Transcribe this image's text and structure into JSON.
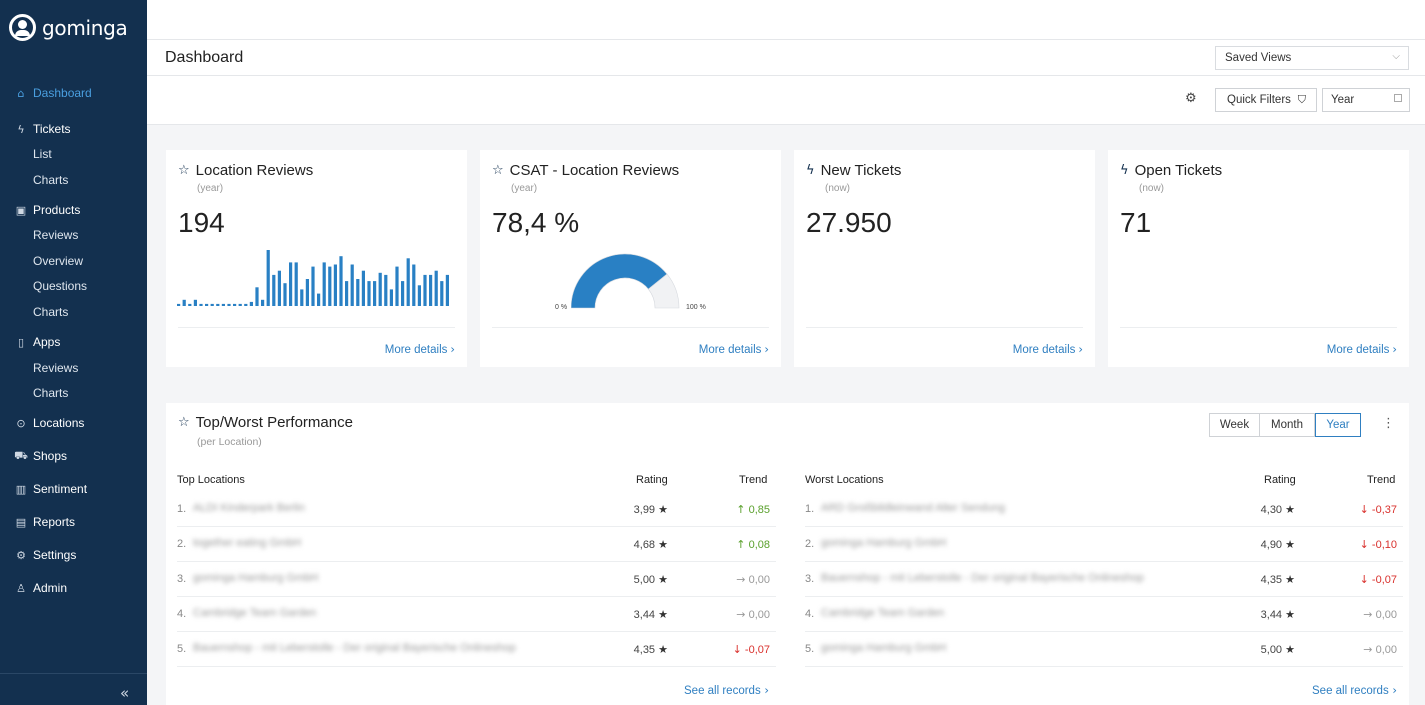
{
  "app": {
    "brand": "gominga"
  },
  "sidebar": {
    "items": [
      {
        "label": "Dashboard",
        "icon": "home-icon",
        "active": true
      },
      {
        "label": "Tickets",
        "icon": "bolt-icon",
        "subitems": [
          "List",
          "Charts"
        ]
      },
      {
        "label": "Products",
        "icon": "box-icon",
        "subitems": [
          "Reviews",
          "Overview",
          "Questions",
          "Charts"
        ]
      },
      {
        "label": "Apps",
        "icon": "phone-icon",
        "subitems": [
          "Reviews",
          "Charts"
        ]
      },
      {
        "label": "Locations",
        "icon": "pin-icon"
      },
      {
        "label": "Shops",
        "icon": "cart-icon"
      },
      {
        "label": "Sentiment",
        "icon": "bar-chart-icon"
      },
      {
        "label": "Reports",
        "icon": "report-icon"
      },
      {
        "label": "Settings",
        "icon": "gear-icon"
      },
      {
        "label": "Admin",
        "icon": "admin-icon"
      }
    ]
  },
  "header": {
    "title": "Dashboard",
    "saved_views": "Saved Views",
    "quick_filters": "Quick Filters",
    "period": "Year"
  },
  "cards": [
    {
      "title": "Location Reviews",
      "sub": "(year)",
      "value": "194",
      "more": "More details"
    },
    {
      "title": "CSAT - Location Reviews",
      "sub": "(year)",
      "value": "78,4 %",
      "more": "More details",
      "gauge": {
        "min_label": "0 %",
        "max_label": "100 %",
        "value_pct": 78.4
      }
    },
    {
      "title": "New Tickets",
      "sub": "(now)",
      "value": "27.950",
      "more": "More details"
    },
    {
      "title": "Open Tickets",
      "sub": "(now)",
      "value": "71",
      "more": "More details"
    }
  ],
  "chart_data": {
    "type": "bar",
    "values": [
      1,
      3,
      1,
      3,
      1,
      1,
      1,
      1,
      1,
      1,
      1,
      1,
      1,
      2,
      9,
      3,
      27,
      15,
      17,
      11,
      21,
      21,
      8,
      13,
      19,
      6,
      21,
      19,
      20,
      24,
      12,
      20,
      13,
      17,
      12,
      12,
      16,
      15,
      8,
      19,
      12,
      23,
      20,
      10,
      15,
      15,
      17,
      12,
      15
    ]
  },
  "performance": {
    "title": "Top/Worst Performance",
    "sub": "(per Location)",
    "periods": [
      "Week",
      "Month",
      "Year"
    ],
    "active_period": "Year",
    "top": {
      "header": "Top Locations",
      "rating_header": "Rating",
      "trend_header": "Trend",
      "rows": [
        {
          "idx": "1.",
          "name": "ALDI Kinderpark Berlin",
          "rating": "3,99",
          "trend": "0,85",
          "dir": "up"
        },
        {
          "idx": "2.",
          "name": "together eating GmbH",
          "rating": "4,68",
          "trend": "0,08",
          "dir": "up"
        },
        {
          "idx": "3.",
          "name": "gominga Hamburg GmbH",
          "rating": "5,00",
          "trend": "0,00",
          "dir": "flat"
        },
        {
          "idx": "4.",
          "name": "Cambridge Team Garden",
          "rating": "3,44",
          "trend": "0,00",
          "dir": "flat"
        },
        {
          "idx": "5.",
          "name": "Bauernshop - mit Leberstolle - Der original Bayerische Onlineshop",
          "rating": "4,35",
          "trend": "-0,07",
          "dir": "down"
        }
      ],
      "see_all": "See all records"
    },
    "worst": {
      "header": "Worst Locations",
      "rating_header": "Rating",
      "trend_header": "Trend",
      "rows": [
        {
          "idx": "1.",
          "name": "ARD Großbildleinwand Alter Sendung",
          "rating": "4,30",
          "trend": "-0,37",
          "dir": "down"
        },
        {
          "idx": "2.",
          "name": "gominga Hamburg GmbH",
          "rating": "4,90",
          "trend": "-0,10",
          "dir": "down"
        },
        {
          "idx": "3.",
          "name": "Bauernshop - mit Leberstolle - Der original Bayerische Onlineshop",
          "rating": "4,35",
          "trend": "-0,07",
          "dir": "down"
        },
        {
          "idx": "4.",
          "name": "Cambridge Team Garden",
          "rating": "3,44",
          "trend": "0,00",
          "dir": "flat"
        },
        {
          "idx": "5.",
          "name": "gominga Hamburg GmbH",
          "rating": "5,00",
          "trend": "0,00",
          "dir": "flat"
        }
      ],
      "see_all": "See all records"
    }
  }
}
